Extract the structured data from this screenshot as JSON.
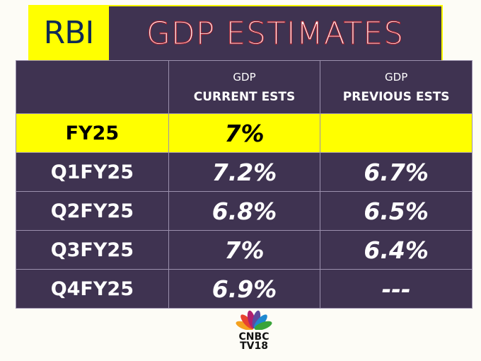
{
  "header": {
    "badge": "RBI",
    "title": "GDP ESTIMATES"
  },
  "table": {
    "columns": [
      {
        "top": "GDP",
        "bottom": "CURRENT ESTS"
      },
      {
        "top": "GDP",
        "bottom": "PREVIOUS ESTS"
      }
    ],
    "rows": [
      {
        "label": "FY25",
        "current": "7%",
        "previous": ""
      },
      {
        "label": "Q1FY25",
        "current": "7.2%",
        "previous": "6.7%"
      },
      {
        "label": "Q2FY25",
        "current": "6.8%",
        "previous": "6.5%"
      },
      {
        "label": "Q3FY25",
        "current": "7%",
        "previous": "6.4%"
      },
      {
        "label": "Q4FY25",
        "current": "6.9%",
        "previous": "---"
      }
    ]
  },
  "logo": {
    "line1": "CNBC",
    "line2": "TV18"
  },
  "colors": {
    "purple": "#3f3351",
    "yellow": "#ffff00",
    "navy": "#0f2a55"
  }
}
